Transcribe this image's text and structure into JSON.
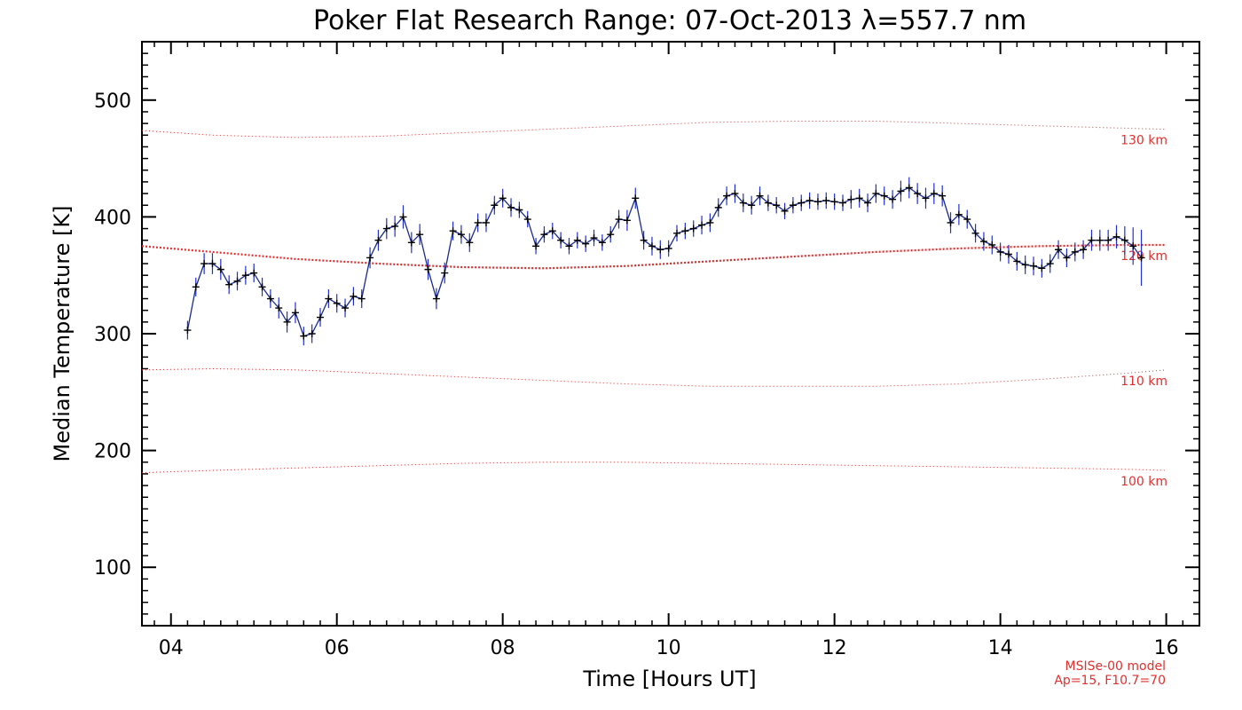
{
  "chart_data": {
    "type": "line",
    "title": "Poker Flat Research Range: 07-Oct-2013 λ=557.7 nm",
    "xlabel": "Time [Hours UT]",
    "ylabel": "Median Temperature [K]",
    "xlim": [
      3.65,
      16.4
    ],
    "ylim": [
      50,
      550
    ],
    "x_ticks": [
      4,
      6,
      8,
      10,
      12,
      14,
      16
    ],
    "x_tick_labels": [
      "04",
      "06",
      "08",
      "10",
      "12",
      "14",
      "16"
    ],
    "y_ticks": [
      100,
      200,
      300,
      400,
      500
    ],
    "y_tick_labels": [
      "100",
      "200",
      "300",
      "400",
      "500"
    ],
    "model_note": [
      "MSISe-00 model",
      "Ap=15, F10.7=70"
    ],
    "series": [
      {
        "name": "Median temperature",
        "color": "#1a2a8c",
        "marker_color": "#000000",
        "errorbar_color": "#2030d0",
        "x": [
          4.2,
          4.3,
          4.4,
          4.5,
          4.6,
          4.7,
          4.8,
          4.9,
          5.0,
          5.1,
          5.2,
          5.3,
          5.4,
          5.5,
          5.6,
          5.7,
          5.8,
          5.9,
          6.0,
          6.1,
          6.2,
          6.3,
          6.4,
          6.5,
          6.6,
          6.7,
          6.8,
          6.9,
          7.0,
          7.1,
          7.2,
          7.3,
          7.4,
          7.5,
          7.6,
          7.7,
          7.8,
          7.9,
          8.0,
          8.1,
          8.2,
          8.3,
          8.4,
          8.5,
          8.6,
          8.7,
          8.8,
          8.9,
          9.0,
          9.1,
          9.2,
          9.3,
          9.4,
          9.5,
          9.6,
          9.7,
          9.8,
          9.9,
          10.0,
          10.1,
          10.2,
          10.3,
          10.4,
          10.5,
          10.6,
          10.7,
          10.8,
          10.9,
          11.0,
          11.1,
          11.2,
          11.3,
          11.4,
          11.5,
          11.6,
          11.7,
          11.8,
          11.9,
          12.0,
          12.1,
          12.2,
          12.3,
          12.4,
          12.5,
          12.6,
          12.7,
          12.8,
          12.9,
          13.0,
          13.1,
          13.2,
          13.3,
          13.4,
          13.5,
          13.6,
          13.7,
          13.8,
          13.9,
          14.0,
          14.1,
          14.2,
          14.3,
          14.4,
          14.5,
          14.6,
          14.7,
          14.8,
          14.9,
          15.0,
          15.1,
          15.2,
          15.3,
          15.4,
          15.5,
          15.6,
          15.7
        ],
        "values": [
          303,
          340,
          360,
          360,
          355,
          342,
          345,
          350,
          352,
          340,
          330,
          322,
          310,
          318,
          298,
          300,
          314,
          330,
          326,
          322,
          332,
          330,
          365,
          380,
          390,
          392,
          400,
          378,
          385,
          355,
          330,
          352,
          388,
          385,
          378,
          395,
          395,
          410,
          416,
          408,
          406,
          398,
          375,
          385,
          388,
          380,
          375,
          380,
          377,
          382,
          378,
          385,
          398,
          397,
          416,
          380,
          375,
          372,
          373,
          386,
          388,
          390,
          393,
          395,
          408,
          418,
          420,
          412,
          410,
          418,
          412,
          410,
          405,
          410,
          412,
          414,
          413,
          414,
          413,
          412,
          415,
          416,
          412,
          420,
          418,
          415,
          422,
          425,
          420,
          416,
          420,
          418,
          395,
          402,
          398,
          386,
          379,
          376,
          370,
          368,
          362,
          359,
          358,
          356,
          360,
          372,
          365,
          370,
          372,
          380,
          380,
          380,
          383,
          380,
          375,
          365
        ],
        "errors": [
          8,
          8,
          9,
          9,
          9,
          8,
          8,
          8,
          8,
          8,
          8,
          9,
          9,
          9,
          8,
          8,
          8,
          8,
          8,
          8,
          8,
          8,
          9,
          9,
          9,
          9,
          10,
          9,
          9,
          9,
          9,
          9,
          8,
          8,
          8,
          8,
          8,
          8,
          8,
          8,
          7,
          7,
          7,
          7,
          7,
          7,
          7,
          7,
          7,
          7,
          7,
          7,
          8,
          9,
          9,
          8,
          8,
          8,
          7,
          7,
          7,
          7,
          8,
          8,
          8,
          8,
          8,
          8,
          8,
          8,
          7,
          7,
          7,
          7,
          7,
          7,
          7,
          7,
          7,
          7,
          8,
          8,
          8,
          8,
          8,
          8,
          9,
          9,
          9,
          9,
          9,
          9,
          9,
          9,
          8,
          8,
          8,
          8,
          8,
          8,
          8,
          8,
          8,
          8,
          8,
          8,
          8,
          8,
          8,
          9,
          9,
          9,
          10,
          12,
          16,
          24
        ]
      }
    ],
    "model_lines": [
      {
        "label": "130 km",
        "color": "#e03030",
        "x": [
          3.65,
          4.5,
          5.5,
          6.5,
          7.5,
          8.5,
          9.5,
          10.5,
          11.5,
          12.5,
          13.5,
          14.5,
          15.5,
          16.0
        ],
        "values": [
          474,
          470,
          468,
          469,
          472,
          475,
          478,
          481,
          482,
          482,
          480,
          478,
          476,
          475
        ]
      },
      {
        "label": "120 km",
        "color": "#e03030",
        "x": [
          3.65,
          4.5,
          5.5,
          6.5,
          7.5,
          8.5,
          9.5,
          10.5,
          11.5,
          12.5,
          13.5,
          14.5,
          15.5,
          16.0
        ],
        "values": [
          375,
          370,
          364,
          360,
          357,
          356,
          358,
          362,
          366,
          370,
          373,
          375,
          376,
          376
        ]
      },
      {
        "label": "110 km",
        "color": "#e03030",
        "x": [
          3.65,
          4.5,
          5.5,
          6.5,
          7.5,
          8.5,
          9.5,
          10.5,
          11.5,
          12.5,
          13.5,
          14.5,
          15.5,
          16.0
        ],
        "values": [
          269,
          270,
          269,
          266,
          263,
          260,
          257,
          255,
          255,
          255,
          257,
          261,
          266,
          269
        ]
      },
      {
        "label": "100 km",
        "color": "#e03030",
        "x": [
          3.65,
          4.5,
          5.5,
          6.5,
          7.5,
          8.5,
          9.5,
          10.5,
          11.5,
          12.5,
          13.5,
          14.5,
          15.5,
          16.0
        ],
        "values": [
          181,
          183,
          185,
          187,
          189,
          190,
          190,
          189,
          188,
          187,
          186,
          185,
          184,
          183
        ]
      }
    ]
  }
}
